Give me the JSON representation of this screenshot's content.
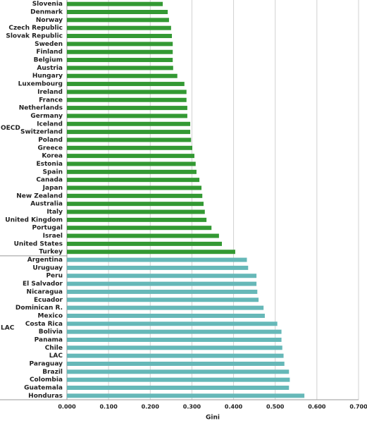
{
  "chart_data": {
    "type": "bar",
    "orientation": "horizontal",
    "xlabel": "Gini",
    "xlim": [
      0,
      0.7
    ],
    "xticks": [
      {
        "value": 0,
        "label": "0.000"
      },
      {
        "value": 0.1,
        "label": "0.100"
      },
      {
        "value": 0.2,
        "label": "0.200"
      },
      {
        "value": 0.3,
        "label": "0.300"
      },
      {
        "value": 0.4,
        "label": "0.400"
      },
      {
        "value": 0.5,
        "label": "0.500"
      },
      {
        "value": 0.6,
        "label": "0.600"
      },
      {
        "value": 0.7,
        "label": "0.700"
      }
    ],
    "grid": true,
    "groups": [
      {
        "name": "OECD",
        "color": "#339933",
        "categories": [
          "Slovenia",
          "Denmark",
          "Norway",
          "Czech Republic",
          "Slovak Republic",
          "Sweden",
          "Finland",
          "Belgium",
          "Austria",
          "Hungary",
          "Luxembourg",
          "Ireland",
          "France",
          "Netherlands",
          "Germany",
          "Iceland",
          "Switzerland",
          "Poland",
          "Greece",
          "Korea",
          "Estonia",
          "Spain",
          "Canada",
          "Japan",
          "New Zealand",
          "Australia",
          "Italy",
          "United Kingdom",
          "Portugal",
          "Israel",
          "United States",
          "Turkey"
        ],
        "values": [
          0.23,
          0.242,
          0.245,
          0.25,
          0.252,
          0.254,
          0.254,
          0.254,
          0.255,
          0.265,
          0.282,
          0.287,
          0.287,
          0.289,
          0.289,
          0.296,
          0.296,
          0.298,
          0.301,
          0.306,
          0.309,
          0.311,
          0.318,
          0.323,
          0.325,
          0.328,
          0.331,
          0.335,
          0.347,
          0.365,
          0.372,
          0.404
        ]
      },
      {
        "name": "LAC",
        "color": "#66b8b8",
        "categories": [
          "Argentina",
          "Uruguay",
          "Peru",
          "El Salvador",
          "Nicaragua",
          "Ecuador",
          "Dominican R.",
          "Mexico",
          "Costa Rica",
          "Bolivia",
          "Panama",
          "Chile",
          "LAC",
          "Paraguay",
          "Brazil",
          "Colombia",
          "Guatemala",
          "Honduras"
        ],
        "values": [
          0.432,
          0.435,
          0.455,
          0.455,
          0.457,
          0.46,
          0.472,
          0.475,
          0.505,
          0.515,
          0.515,
          0.517,
          0.52,
          0.522,
          0.533,
          0.535,
          0.533,
          0.57
        ]
      }
    ]
  }
}
